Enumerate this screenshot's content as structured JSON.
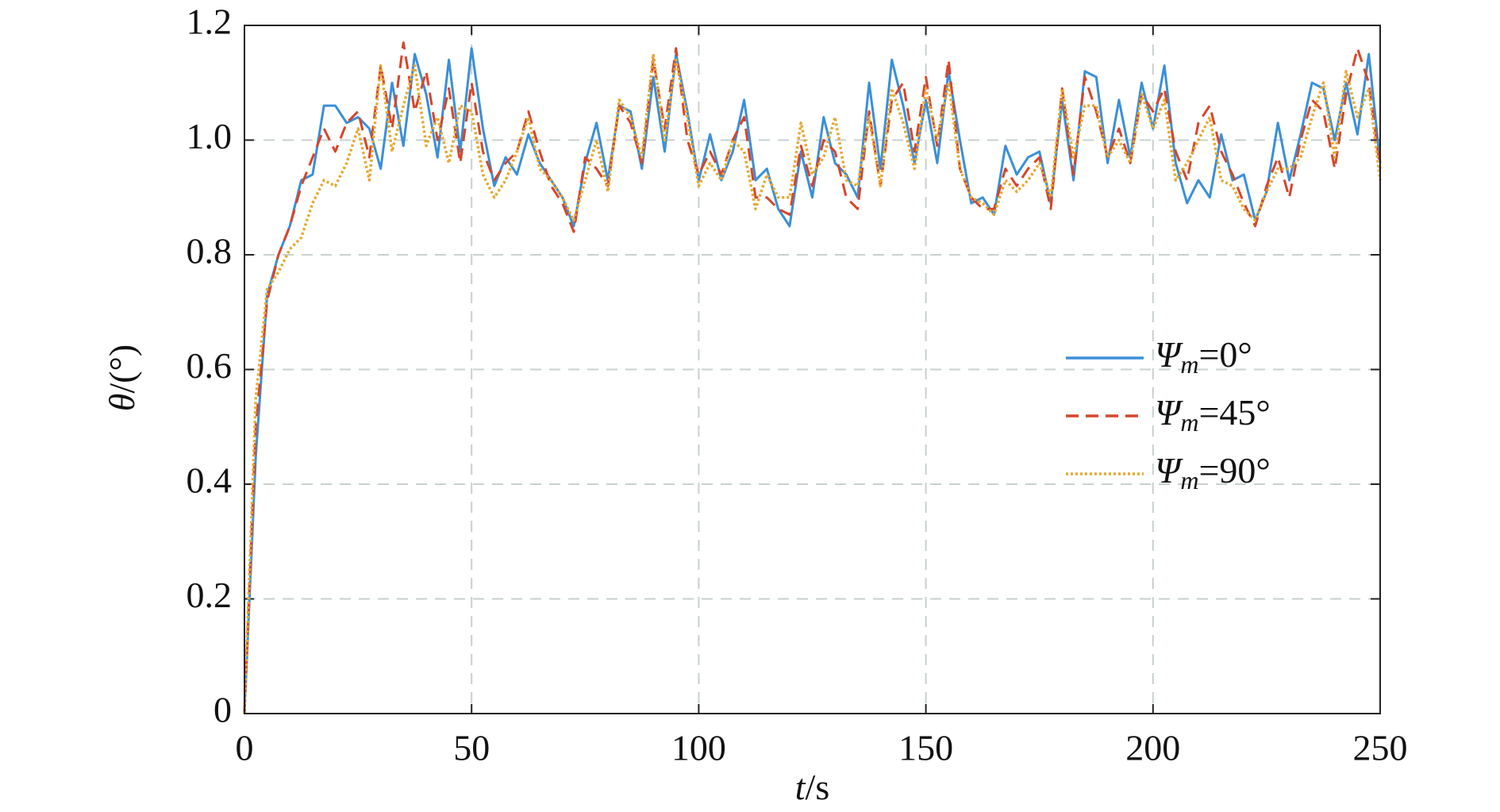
{
  "chart_data": {
    "type": "line",
    "xlabel": "t/s",
    "ylabel": "θ/(°)",
    "x": [
      0,
      2.5,
      5,
      7.5,
      10,
      12.5,
      15,
      17.5,
      20,
      22.5,
      25,
      27.5,
      30,
      32.5,
      35,
      37.5,
      40,
      42.5,
      45,
      47.5,
      50,
      52.5,
      55,
      57.5,
      60,
      62.5,
      65,
      67.5,
      70,
      72.5,
      75,
      77.5,
      80,
      82.5,
      85,
      87.5,
      90,
      92.5,
      95,
      97.5,
      100,
      102.5,
      105,
      107.5,
      110,
      112.5,
      115,
      117.5,
      120,
      122.5,
      125,
      127.5,
      130,
      132.5,
      135,
      137.5,
      140,
      142.5,
      145,
      147.5,
      150,
      152.5,
      155,
      157.5,
      160,
      162.5,
      165,
      167.5,
      170,
      172.5,
      175,
      177.5,
      180,
      182.5,
      185,
      187.5,
      190,
      192.5,
      195,
      197.5,
      200,
      202.5,
      205,
      207.5,
      210,
      212.5,
      215,
      217.5,
      220,
      222.5,
      225,
      227.5,
      230,
      232.5,
      235,
      237.5,
      240,
      242.5,
      245,
      247.5,
      250
    ],
    "series": [
      {
        "name": "Ψm=0°",
        "color": "#3a8fd8",
        "linestyle": "solid",
        "values": [
          0,
          0.45,
          0.73,
          0.8,
          0.85,
          0.93,
          0.94,
          1.06,
          1.06,
          1.03,
          1.04,
          1.02,
          0.95,
          1.1,
          0.99,
          1.15,
          1.08,
          0.97,
          1.14,
          0.98,
          1.16,
          1.02,
          0.92,
          0.97,
          0.94,
          1.01,
          0.96,
          0.93,
          0.9,
          0.85,
          0.96,
          1.03,
          0.93,
          1.06,
          1.05,
          0.95,
          1.11,
          0.98,
          1.15,
          1.05,
          0.93,
          1.01,
          0.93,
          0.98,
          1.07,
          0.93,
          0.95,
          0.88,
          0.85,
          0.98,
          0.9,
          1.04,
          0.96,
          0.94,
          0.9,
          1.1,
          0.95,
          1.14,
          1.06,
          0.96,
          1.07,
          0.96,
          1.12,
          1.0,
          0.89,
          0.9,
          0.87,
          0.99,
          0.94,
          0.97,
          0.98,
          0.89,
          1.07,
          0.93,
          1.12,
          1.11,
          0.96,
          1.07,
          0.97,
          1.1,
          1.02,
          1.13,
          0.96,
          0.89,
          0.93,
          0.9,
          1.01,
          0.93,
          0.94,
          0.86,
          0.91,
          1.03,
          0.93,
          1.01,
          1.1,
          1.09,
          1.0,
          1.1,
          1.01,
          1.15,
          0.96
        ]
      },
      {
        "name": "Ψm=45°",
        "color": "#d6452b",
        "linestyle": "dashed",
        "values": [
          0,
          0.5,
          0.72,
          0.8,
          0.85,
          0.92,
          0.97,
          1.02,
          0.98,
          1.03,
          1.05,
          0.97,
          1.13,
          1.02,
          1.17,
          1.05,
          1.12,
          1.0,
          1.09,
          0.96,
          1.1,
          0.98,
          0.93,
          0.96,
          0.98,
          1.05,
          0.98,
          0.92,
          0.89,
          0.84,
          0.97,
          0.95,
          0.92,
          1.06,
          1.03,
          0.96,
          1.14,
          1.02,
          1.16,
          1.0,
          0.94,
          0.98,
          0.94,
          1.0,
          1.04,
          0.9,
          0.9,
          0.88,
          0.87,
          0.99,
          0.92,
          1.0,
          0.98,
          0.9,
          0.88,
          1.05,
          0.92,
          1.07,
          1.1,
          0.98,
          1.11,
          0.99,
          1.14,
          0.95,
          0.9,
          0.88,
          0.88,
          0.95,
          0.92,
          0.95,
          0.97,
          0.88,
          1.09,
          0.94,
          1.11,
          1.05,
          0.97,
          1.02,
          0.96,
          1.08,
          1.05,
          1.09,
          0.98,
          0.93,
          1.03,
          1.06,
          0.98,
          0.94,
          0.89,
          0.85,
          0.92,
          0.97,
          0.9,
          1.0,
          1.07,
          1.05,
          0.95,
          1.08,
          1.16,
          1.1,
          0.95
        ]
      },
      {
        "name": "Ψm=90°",
        "color": "#e5a830",
        "linestyle": "dotted",
        "values": [
          0,
          0.55,
          0.74,
          0.77,
          0.81,
          0.83,
          0.89,
          0.93,
          0.92,
          0.96,
          1.02,
          0.93,
          1.13,
          0.98,
          1.06,
          1.13,
          0.99,
          1.04,
          0.96,
          1.06,
          1.05,
          0.94,
          0.9,
          0.93,
          0.98,
          1.04,
          0.95,
          0.93,
          0.9,
          0.86,
          0.93,
          1.0,
          0.91,
          1.07,
          1.04,
          0.97,
          1.15,
          1.0,
          1.14,
          1.04,
          0.92,
          0.96,
          0.93,
          1.0,
          0.98,
          0.88,
          0.94,
          0.9,
          0.9,
          1.03,
          0.94,
          0.97,
          1.04,
          0.93,
          0.92,
          1.04,
          0.92,
          1.09,
          1.03,
          0.95,
          1.09,
          1.0,
          1.1,
          0.95,
          0.9,
          0.89,
          0.87,
          0.93,
          0.91,
          0.93,
          0.96,
          0.9,
          1.09,
          0.97,
          1.06,
          1.06,
          0.97,
          1.0,
          0.96,
          1.08,
          1.02,
          1.07,
          0.93,
          0.96,
          1.0,
          1.04,
          0.93,
          0.92,
          0.88,
          0.86,
          0.91,
          0.95,
          0.95,
          0.97,
          1.04,
          1.1,
          0.97,
          1.12,
          1.04,
          1.09,
          0.93
        ]
      }
    ],
    "xlim": [
      0,
      250
    ],
    "xticks": [
      0,
      50,
      100,
      150,
      200,
      250
    ],
    "ylim": [
      0,
      1.2
    ],
    "yticks": [
      0,
      0.2,
      0.4,
      0.6,
      0.8,
      {
        "value": 1,
        "label": "1.0"
      },
      1.2
    ],
    "grid": true,
    "legend": "right"
  }
}
